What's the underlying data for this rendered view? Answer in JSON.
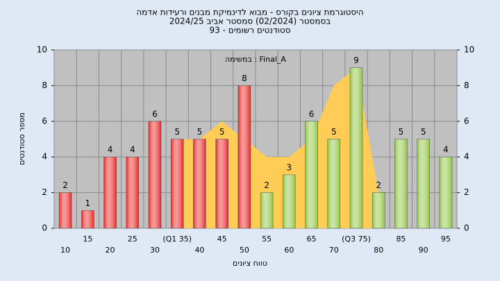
{
  "chart_data": {
    "type": "bar",
    "title": [
      "היסטוגרמת ציונים בקורס - מבוא לדינמיקת מבנים ורעידות אדמה",
      "בסמסטר  (02/2024)  סמסטר אביב 2024/25",
      "סטודנטים רשומים - 93"
    ],
    "annotation": "במשימה : Final_A",
    "x_label": "טווח ציונים",
    "y_label": "מספר סטודנטים",
    "categories": [
      "10",
      "15",
      "20",
      "25",
      "30",
      "(Q1 35)",
      "40",
      "45",
      "50",
      "55",
      "60",
      "65",
      "70",
      "(Q3 75)",
      "80",
      "85",
      "90",
      "95"
    ],
    "series": [
      {
        "values": [
          2,
          1,
          4,
          4,
          6,
          5,
          5,
          5,
          8,
          2,
          3,
          6,
          5,
          9,
          2,
          5,
          5,
          4
        ],
        "colors": [
          "#e82020",
          "#e82020",
          "#e82020",
          "#e82020",
          "#e82020",
          "#e82020",
          "#e82020",
          "#e82020",
          "#e82020",
          "#8cc43c",
          "#8cc43c",
          "#8cc43c",
          "#8cc43c",
          "#8cc43c",
          "#8cc43c",
          "#8cc43c",
          "#8cc43c",
          "#8cc43c"
        ]
      }
    ],
    "area": {
      "color": "#ffcc55",
      "values": [
        null,
        null,
        null,
        null,
        null,
        5,
        5,
        6,
        5,
        4,
        4,
        5,
        8,
        9,
        2,
        null,
        null,
        null
      ]
    },
    "ylim": [
      0,
      10
    ],
    "yticks": [
      0,
      2,
      4,
      6,
      8,
      10
    ],
    "grid": true,
    "plot_color": "#c0c0c0"
  }
}
